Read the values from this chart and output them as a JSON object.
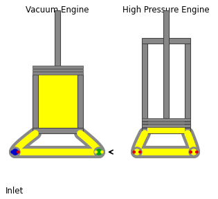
{
  "bg_color": "#ffffff",
  "gray": "#888888",
  "dark_gray": "#444444",
  "yellow": "#ffff00",
  "red": "#dd0000",
  "blue": "#0000cc",
  "green": "#00aa00",
  "title1": "Vacuum Engine",
  "title2": "High Pressure Engine",
  "inlet_label": "Inlet",
  "figsize": [
    3.15,
    2.88
  ],
  "dpi": 100
}
